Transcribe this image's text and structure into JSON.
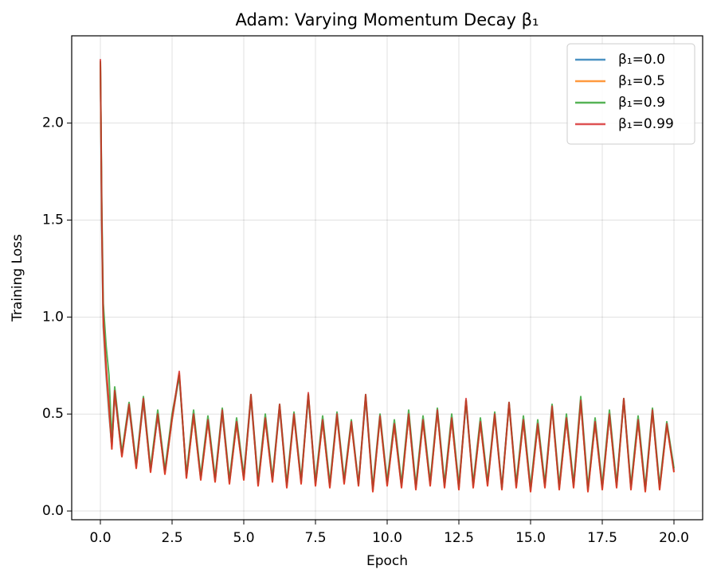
{
  "chart_data": {
    "type": "line",
    "title": "Adam: Varying Momentum Decay β₁",
    "x_label": "Epoch",
    "y_label": "Training Loss",
    "x": [
      0,
      0.05,
      0.1,
      0.2,
      0.3,
      0.4,
      0.5,
      0.75,
      1.0,
      1.25,
      1.5,
      1.75,
      2.0,
      2.25,
      2.5,
      2.75,
      3.0,
      3.25,
      3.5,
      3.75,
      4.0,
      4.25,
      4.5,
      4.75,
      5.0,
      5.25,
      5.5,
      5.75,
      6.0,
      6.25,
      6.5,
      6.75,
      7.0,
      7.25,
      7.5,
      7.75,
      8.0,
      8.25,
      8.5,
      8.75,
      9.0,
      9.25,
      9.5,
      9.75,
      10.0,
      10.25,
      10.5,
      10.75,
      11.0,
      11.25,
      11.5,
      11.75,
      12.0,
      12.25,
      12.5,
      12.75,
      13.0,
      13.25,
      13.5,
      13.75,
      14.0,
      14.25,
      14.5,
      14.75,
      15.0,
      15.25,
      15.5,
      15.75,
      16.0,
      16.25,
      16.5,
      16.75,
      17.0,
      17.25,
      17.5,
      17.75,
      18.0,
      18.25,
      18.5,
      18.75,
      19.0,
      19.25,
      19.5,
      19.75,
      20.0
    ],
    "series": [
      {
        "name": "β₁=0.0",
        "color": "#1f77b4",
        "values": [
          2.3,
          1.45,
          0.95,
          0.7,
          0.5,
          0.33,
          0.6,
          0.29,
          0.53,
          0.23,
          0.56,
          0.21,
          0.49,
          0.2,
          0.47,
          0.7,
          0.18,
          0.49,
          0.17,
          0.46,
          0.16,
          0.5,
          0.15,
          0.45,
          0.17,
          0.58,
          0.14,
          0.47,
          0.16,
          0.53,
          0.13,
          0.49,
          0.15,
          0.59,
          0.14,
          0.46,
          0.13,
          0.49,
          0.15,
          0.45,
          0.14,
          0.58,
          0.11,
          0.48,
          0.14,
          0.44,
          0.13,
          0.49,
          0.12,
          0.46,
          0.14,
          0.51,
          0.13,
          0.47,
          0.12,
          0.56,
          0.13,
          0.45,
          0.14,
          0.49,
          0.12,
          0.55,
          0.13,
          0.46,
          0.11,
          0.44,
          0.13,
          0.53,
          0.12,
          0.47,
          0.13,
          0.56,
          0.11,
          0.45,
          0.12,
          0.49,
          0.13,
          0.57,
          0.12,
          0.46,
          0.11,
          0.51,
          0.12,
          0.44,
          0.21
        ]
      },
      {
        "name": "β₁=0.5",
        "color": "#ff7f0e",
        "values": [
          2.31,
          1.48,
          0.97,
          0.72,
          0.52,
          0.32,
          0.61,
          0.28,
          0.54,
          0.22,
          0.57,
          0.2,
          0.5,
          0.19,
          0.47,
          0.71,
          0.17,
          0.49,
          0.16,
          0.46,
          0.15,
          0.51,
          0.14,
          0.45,
          0.16,
          0.59,
          0.13,
          0.47,
          0.15,
          0.54,
          0.12,
          0.49,
          0.14,
          0.6,
          0.13,
          0.46,
          0.12,
          0.49,
          0.14,
          0.45,
          0.13,
          0.59,
          0.1,
          0.48,
          0.13,
          0.44,
          0.12,
          0.49,
          0.11,
          0.46,
          0.13,
          0.51,
          0.12,
          0.47,
          0.11,
          0.57,
          0.12,
          0.45,
          0.13,
          0.49,
          0.11,
          0.55,
          0.12,
          0.46,
          0.1,
          0.44,
          0.12,
          0.53,
          0.11,
          0.47,
          0.12,
          0.56,
          0.1,
          0.45,
          0.11,
          0.49,
          0.12,
          0.57,
          0.11,
          0.46,
          0.1,
          0.51,
          0.11,
          0.44,
          0.2
        ]
      },
      {
        "name": "β₁=0.9",
        "color": "#2ca02c",
        "values": [
          2.32,
          1.55,
          1.07,
          0.85,
          0.7,
          0.36,
          0.64,
          0.3,
          0.56,
          0.24,
          0.59,
          0.22,
          0.52,
          0.21,
          0.5,
          0.7,
          0.19,
          0.52,
          0.18,
          0.49,
          0.17,
          0.53,
          0.16,
          0.48,
          0.18,
          0.6,
          0.15,
          0.5,
          0.17,
          0.55,
          0.14,
          0.51,
          0.16,
          0.6,
          0.15,
          0.49,
          0.14,
          0.51,
          0.16,
          0.47,
          0.14,
          0.6,
          0.12,
          0.5,
          0.15,
          0.47,
          0.14,
          0.52,
          0.13,
          0.49,
          0.15,
          0.53,
          0.14,
          0.5,
          0.13,
          0.57,
          0.14,
          0.48,
          0.15,
          0.51,
          0.12,
          0.56,
          0.14,
          0.49,
          0.12,
          0.47,
          0.14,
          0.55,
          0.13,
          0.5,
          0.14,
          0.59,
          0.12,
          0.48,
          0.13,
          0.52,
          0.14,
          0.58,
          0.13,
          0.49,
          0.12,
          0.53,
          0.13,
          0.46,
          0.22
        ]
      },
      {
        "name": "β₁=0.99",
        "color": "#d62728",
        "values": [
          2.33,
          1.5,
          1.0,
          0.75,
          0.55,
          0.32,
          0.62,
          0.28,
          0.55,
          0.22,
          0.58,
          0.2,
          0.5,
          0.19,
          0.48,
          0.72,
          0.17,
          0.5,
          0.16,
          0.47,
          0.15,
          0.52,
          0.14,
          0.46,
          0.16,
          0.6,
          0.13,
          0.48,
          0.15,
          0.55,
          0.12,
          0.5,
          0.14,
          0.61,
          0.13,
          0.47,
          0.12,
          0.5,
          0.14,
          0.46,
          0.13,
          0.6,
          0.1,
          0.49,
          0.13,
          0.45,
          0.12,
          0.5,
          0.11,
          0.47,
          0.13,
          0.52,
          0.12,
          0.48,
          0.11,
          0.58,
          0.12,
          0.46,
          0.13,
          0.5,
          0.11,
          0.56,
          0.12,
          0.47,
          0.1,
          0.45,
          0.12,
          0.54,
          0.11,
          0.48,
          0.12,
          0.57,
          0.1,
          0.46,
          0.11,
          0.5,
          0.12,
          0.58,
          0.11,
          0.47,
          0.1,
          0.52,
          0.11,
          0.45,
          0.2
        ]
      }
    ],
    "xlim": [
      -1,
      21
    ],
    "ylim": [
      -0.045,
      2.45
    ],
    "xticks": [
      {
        "value": 0,
        "label": "0.0"
      },
      2.5,
      {
        "value": 5,
        "label": "5.0"
      },
      7.5,
      {
        "value": 10,
        "label": "10.0"
      },
      12.5,
      {
        "value": 15,
        "label": "15.0"
      },
      17.5,
      {
        "value": 20,
        "label": "20.0"
      }
    ],
    "yticks": [
      {
        "value": 0,
        "label": "0.0"
      },
      0.5,
      {
        "value": 1,
        "label": "1.0"
      },
      1.5,
      {
        "value": 2,
        "label": "2.0"
      }
    ],
    "grid": true,
    "legend": "upper right"
  }
}
